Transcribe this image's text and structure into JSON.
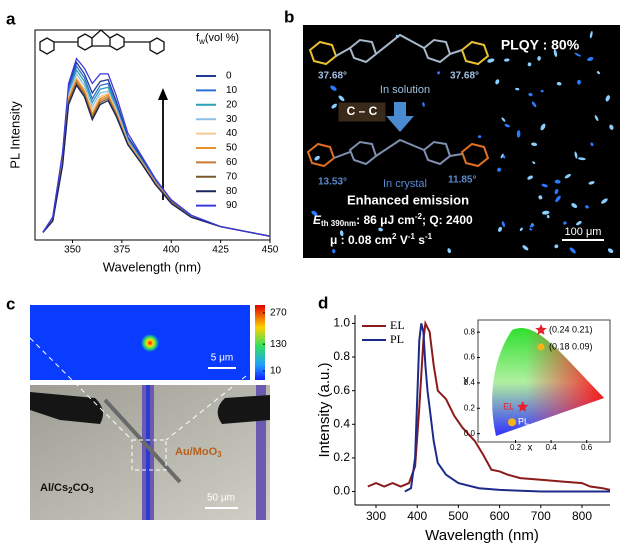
{
  "figure": {
    "panel_labels": [
      "a",
      "b",
      "c",
      "d"
    ],
    "b": {
      "plqy": "PLQY : 80%",
      "angle_left_top": "37.68°",
      "angle_right_top": "37.68°",
      "solution": "In solution",
      "bond": "C – C",
      "angle_left_bottom": "13.53°",
      "angle_right_bottom": "11.85°",
      "crystal": "In crystal",
      "enhanced": "Enhanced emission",
      "threshold": [
        "E",
        "th 390nm",
        ": 86 μJ cm",
        "-2",
        "; Q: 2400"
      ],
      "mobility": [
        "μ : 0.08 cm",
        "2",
        " V",
        "-1",
        " s",
        "-1"
      ],
      "scale_bar": "100 μm"
    },
    "c": {
      "colorbar_ticks": [
        270,
        130,
        10
      ],
      "colorbar_lim": [
        -30,
        305
      ],
      "scale_bar_top": "5 μm",
      "au": [
        "Au/MoO",
        "3"
      ],
      "al": [
        "Al/Cs",
        "2",
        "CO",
        "3"
      ],
      "scale_bar_bottom": "50 μm"
    }
  },
  "chart_data": [
    {
      "type": "line",
      "xlabel": "Wavelength (nm)",
      "ylabel": "PL Intensity",
      "legend_title": [
        "f",
        "w",
        "(vol  %)"
      ],
      "x": [
        335,
        340,
        345,
        348,
        352,
        356,
        360,
        364,
        368,
        372,
        378,
        385,
        392,
        400,
        410,
        425,
        440,
        450
      ],
      "xlim": [
        331,
        450
      ],
      "xticks": [
        350,
        375,
        400,
        425,
        450
      ],
      "ylim": [
        0,
        1.1
      ],
      "series": [
        {
          "name": "0",
          "color": "#1f3a93",
          "values": [
            0.04,
            0.12,
            0.45,
            0.8,
            0.93,
            0.87,
            0.77,
            0.83,
            0.84,
            0.73,
            0.54,
            0.43,
            0.31,
            0.21,
            0.13,
            0.07,
            0.04,
            0.02
          ]
        },
        {
          "name": "10",
          "color": "#2f6fd0",
          "values": [
            0.04,
            0.12,
            0.44,
            0.79,
            0.91,
            0.85,
            0.74,
            0.81,
            0.82,
            0.71,
            0.53,
            0.42,
            0.31,
            0.21,
            0.13,
            0.07,
            0.04,
            0.02
          ]
        },
        {
          "name": "20",
          "color": "#2aa0b8",
          "values": [
            0.04,
            0.11,
            0.43,
            0.77,
            0.89,
            0.83,
            0.72,
            0.79,
            0.8,
            0.7,
            0.52,
            0.42,
            0.3,
            0.2,
            0.12,
            0.07,
            0.04,
            0.02
          ]
        },
        {
          "name": "30",
          "color": "#8cc0e8",
          "values": [
            0.04,
            0.11,
            0.42,
            0.76,
            0.87,
            0.81,
            0.7,
            0.77,
            0.78,
            0.69,
            0.52,
            0.41,
            0.3,
            0.2,
            0.12,
            0.07,
            0.04,
            0.02
          ]
        },
        {
          "name": "40",
          "color": "#f5c890",
          "values": [
            0.04,
            0.11,
            0.41,
            0.75,
            0.85,
            0.79,
            0.68,
            0.75,
            0.77,
            0.68,
            0.51,
            0.41,
            0.3,
            0.2,
            0.12,
            0.07,
            0.04,
            0.02
          ]
        },
        {
          "name": "50",
          "color": "#e8912a",
          "values": [
            0.04,
            0.11,
            0.41,
            0.74,
            0.84,
            0.78,
            0.66,
            0.74,
            0.76,
            0.67,
            0.51,
            0.41,
            0.3,
            0.2,
            0.12,
            0.07,
            0.04,
            0.02
          ]
        },
        {
          "name": "60",
          "color": "#c87830",
          "values": [
            0.04,
            0.1,
            0.4,
            0.73,
            0.83,
            0.77,
            0.65,
            0.73,
            0.75,
            0.66,
            0.5,
            0.4,
            0.29,
            0.2,
            0.12,
            0.07,
            0.04,
            0.02
          ]
        },
        {
          "name": "70",
          "color": "#7a5a2a",
          "values": [
            0.04,
            0.1,
            0.4,
            0.72,
            0.82,
            0.76,
            0.64,
            0.72,
            0.74,
            0.66,
            0.5,
            0.4,
            0.29,
            0.2,
            0.12,
            0.07,
            0.04,
            0.02
          ]
        },
        {
          "name": "80",
          "color": "#1a2560",
          "values": [
            0.04,
            0.1,
            0.39,
            0.71,
            0.81,
            0.75,
            0.63,
            0.71,
            0.73,
            0.65,
            0.5,
            0.4,
            0.29,
            0.19,
            0.12,
            0.07,
            0.04,
            0.02
          ]
        },
        {
          "name": "90",
          "color": "#3a3adf",
          "values": [
            0.04,
            0.12,
            0.46,
            0.82,
            0.95,
            0.9,
            0.82,
            0.87,
            0.87,
            0.76,
            0.56,
            0.44,
            0.32,
            0.21,
            0.13,
            0.07,
            0.04,
            0.02
          ]
        }
      ]
    },
    {
      "type": "line",
      "xlabel": "Wavelength (nm)",
      "ylabel": "Intensity (a.u.)",
      "xlim": [
        249,
        868
      ],
      "xticks": [
        300,
        400,
        500,
        600,
        700,
        800
      ],
      "ylim": [
        -0.08,
        1.05
      ],
      "yticks": [
        {
          "value": 0,
          "label": "0.0"
        },
        0.2,
        0.4,
        0.6,
        0.8,
        {
          "value": 1,
          "label": "1.0"
        }
      ],
      "series": [
        {
          "name": "EL",
          "color": "#8b1a1a",
          "x": [
            280,
            300,
            320,
            340,
            360,
            380,
            395,
            405,
            415,
            420,
            430,
            440,
            450,
            470,
            490,
            510,
            540,
            560,
            580,
            600,
            620,
            650,
            700,
            750,
            800,
            820,
            850,
            868
          ],
          "values": [
            0.03,
            0.05,
            0.03,
            0.05,
            0.03,
            0.05,
            0.15,
            0.5,
            0.9,
            1.0,
            0.95,
            0.75,
            0.6,
            0.55,
            0.45,
            0.38,
            0.3,
            0.22,
            0.13,
            0.12,
            0.1,
            0.08,
            0.07,
            0.06,
            0.05,
            0.03,
            0.02,
            0.01
          ]
        },
        {
          "name": "PL",
          "color": "#1c2a8a",
          "x": [
            370,
            385,
            395,
            400,
            405,
            410,
            415,
            420,
            425,
            430,
            440,
            450,
            470,
            500,
            550,
            600,
            700,
            800,
            868
          ],
          "values": [
            0,
            0.02,
            0.2,
            0.55,
            0.9,
            1.0,
            0.95,
            0.75,
            0.6,
            0.5,
            0.3,
            0.17,
            0.1,
            0.05,
            0.02,
            0.01,
            0,
            0,
            0
          ]
        }
      ]
    },
    {
      "type": "scatter",
      "xlabel": "x",
      "ylabel": "y",
      "xlim": [
        0,
        0.72
      ],
      "ylim": [
        -0.05,
        0.88
      ],
      "xticks": [
        0.2,
        0.4,
        0.6
      ],
      "yticks": [
        {
          "value": 0,
          "label": "0.0"
        },
        0.2,
        0.4,
        0.6,
        0.8
      ],
      "series": [
        {
          "name": "EL",
          "color": "#e8202a",
          "marker": "star",
          "x": [
            0.24
          ],
          "values": [
            0.21
          ],
          "value_labels": [
            "(0.24 0.21)"
          ]
        },
        {
          "name": "PL",
          "color": "#f7b318",
          "marker": "circle",
          "x": [
            0.18
          ],
          "values": [
            0.09
          ],
          "value_labels": [
            "(0.18 0.09)"
          ]
        }
      ]
    }
  ]
}
